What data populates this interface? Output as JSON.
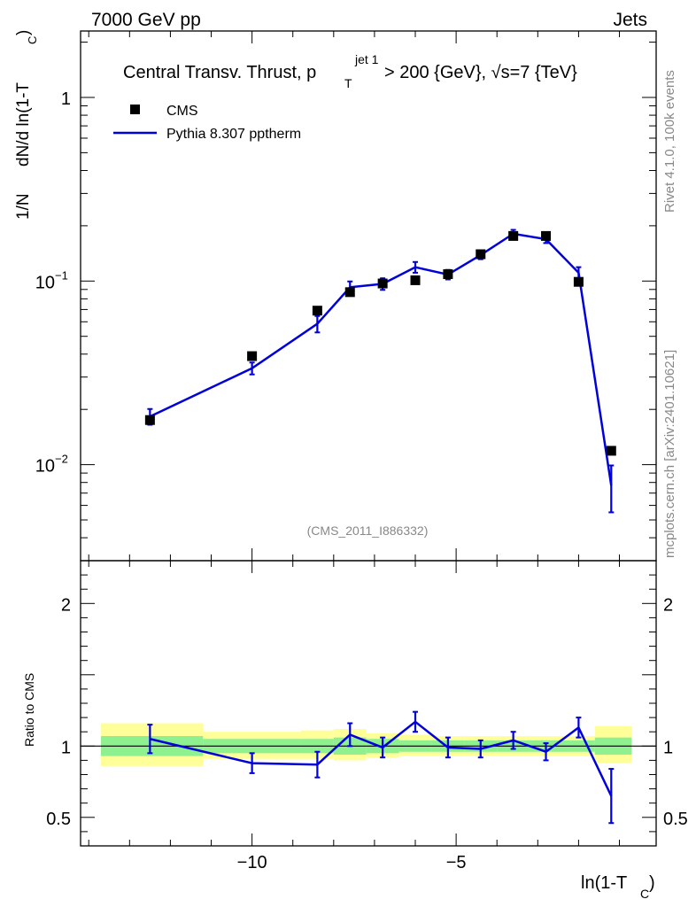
{
  "header": {
    "left": "7000 GeV pp",
    "right": "Jets"
  },
  "title": {
    "main": "Central Transv. Thrust, p",
    "sub": "T",
    "sup": "jet 1",
    "rest": " > 200 {GeV}, √s=7 {TeV}"
  },
  "side_labels": {
    "rivet": "Rivet 4.1.0,  100k events",
    "mcplots": "mcplots.cern.ch [arXiv:2401.10621]"
  },
  "watermark": "(CMS_2011_I886332)",
  "legend": {
    "data": "CMS",
    "mc": "Pythia 8.307 pptherm"
  },
  "colors": {
    "mc": "#0000dd",
    "band_inner": "#8ef08e",
    "band_outer": "#ffff9a"
  },
  "chart_data": [
    {
      "type": "scatter",
      "title": "Central Transv. Thrust, p_T^{jet 1} > 200 {GeV}, √s=7 {TeV}",
      "xlabel": "ln(1-T",
      "xlabel_sub": "C",
      "xlabel_end": ")",
      "ylabel_main": "dN/d ln(1-T",
      "ylabel_sub": "C",
      "ylabel_end": ")",
      "ylabel_prefix": "1/N",
      "yscale": "log",
      "xlim": [
        -14.2,
        -0.1
      ],
      "ylim": [
        0.003,
        2.3
      ],
      "y_ticks": [
        {
          "v": 1,
          "label": "1"
        },
        {
          "v": 0.1,
          "label": "10",
          "exp": "−1"
        },
        {
          "v": 0.01,
          "label": "10",
          "exp": "−2"
        }
      ],
      "series": [
        {
          "name": "CMS",
          "x": [
            -12.5,
            -10.0,
            -8.4,
            -7.6,
            -6.8,
            -6.0,
            -5.2,
            -4.4,
            -3.6,
            -2.8,
            -2.0,
            -1.2
          ],
          "values": [
            0.0175,
            0.039,
            0.069,
            0.087,
            0.097,
            0.101,
            0.109,
            0.14,
            0.176,
            0.176,
            0.099,
            0.0119
          ]
        },
        {
          "name": "Pythia 8.307 pptherm",
          "x": [
            -12.5,
            -10.0,
            -8.4,
            -7.6,
            -6.8,
            -6.0,
            -5.2,
            -4.4,
            -3.6,
            -2.8,
            -2.0,
            -1.2
          ],
          "values": [
            0.0183,
            0.0335,
            0.0585,
            0.0925,
            0.0965,
            0.119,
            0.1085,
            0.1385,
            0.181,
            0.169,
            0.111,
            0.0077
          ],
          "err": [
            0.0018,
            0.0025,
            0.006,
            0.007,
            0.007,
            0.008,
            0.0065,
            0.007,
            0.009,
            0.008,
            0.008,
            0.0022
          ]
        }
      ]
    },
    {
      "type": "line",
      "ylabel": "Ratio to CMS",
      "xlabel": "ln(1-T_C)",
      "xlim": [
        -14.2,
        -0.1
      ],
      "ylim": [
        0.3,
        2.3
      ],
      "x_ticks": [
        {
          "v": -10,
          "label": "−10"
        },
        {
          "v": -5,
          "label": "−5"
        }
      ],
      "y_ticks": [
        {
          "v": 2,
          "label": "2"
        },
        {
          "v": 1,
          "label": "1"
        },
        {
          "v": 0.5,
          "label": "0.5"
        }
      ],
      "series": [
        {
          "name": "Pythia 8.307 pptherm / CMS",
          "x": [
            -12.5,
            -10.0,
            -8.4,
            -7.6,
            -6.8,
            -6.0,
            -5.2,
            -4.4,
            -3.6,
            -2.8,
            -2.0,
            -1.2
          ],
          "values": [
            1.05,
            0.88,
            0.87,
            1.08,
            0.99,
            1.17,
            0.99,
            0.98,
            1.04,
            0.96,
            1.13,
            0.65
          ],
          "err": [
            0.1,
            0.07,
            0.09,
            0.08,
            0.07,
            0.07,
            0.07,
            0.06,
            0.06,
            0.06,
            0.07,
            0.19
          ]
        }
      ],
      "bands": {
        "edges": [
          -13.7,
          -11.2,
          -8.8,
          -8.0,
          -7.2,
          -6.4,
          -5.6,
          -4.8,
          -4.0,
          -3.2,
          -2.4,
          -1.6,
          -0.7
        ],
        "inner": [
          [
            0.93,
            1.07
          ],
          [
            0.95,
            1.05
          ],
          [
            0.95,
            1.05
          ],
          [
            0.94,
            1.06
          ],
          [
            0.95,
            1.05
          ],
          [
            0.96,
            1.04
          ],
          [
            0.96,
            1.04
          ],
          [
            0.96,
            1.04
          ],
          [
            0.96,
            1.04
          ],
          [
            0.96,
            1.04
          ],
          [
            0.96,
            1.04
          ],
          [
            0.94,
            1.06
          ]
        ],
        "outer": [
          [
            0.86,
            1.16
          ],
          [
            0.91,
            1.1
          ],
          [
            0.91,
            1.11
          ],
          [
            0.9,
            1.12
          ],
          [
            0.92,
            1.09
          ],
          [
            0.93,
            1.08
          ],
          [
            0.93,
            1.07
          ],
          [
            0.93,
            1.07
          ],
          [
            0.93,
            1.07
          ],
          [
            0.93,
            1.07
          ],
          [
            0.93,
            1.07
          ],
          [
            0.88,
            1.14
          ]
        ]
      }
    }
  ]
}
